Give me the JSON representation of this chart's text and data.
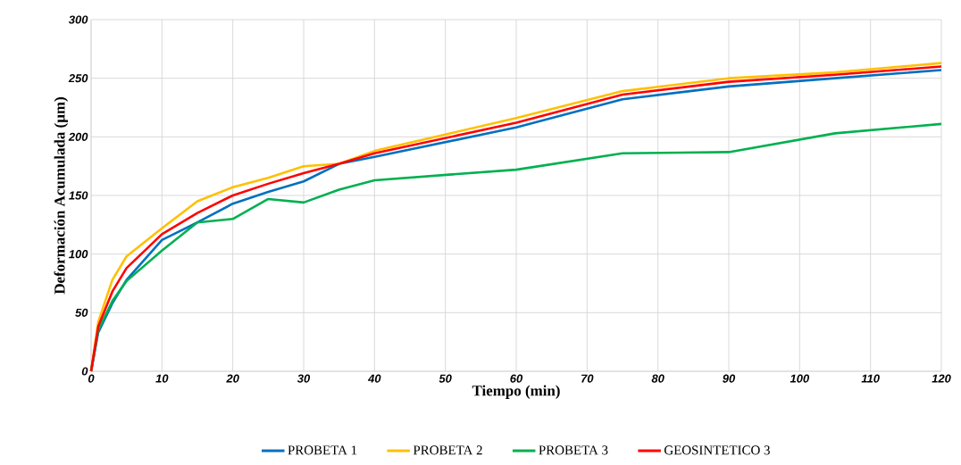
{
  "chart_data": {
    "type": "line",
    "xlabel": "Tiempo (min)",
    "ylabel": "Deformación Acumulada (µm)",
    "x": [
      0,
      1,
      3,
      5,
      10,
      15,
      20,
      25,
      30,
      35,
      40,
      60,
      75,
      90,
      105,
      120
    ],
    "series": [
      {
        "name": "PROBETA 1",
        "color": "#0070c0",
        "values": [
          0,
          33,
          58,
          78,
          112,
          127,
          143,
          153,
          162,
          177,
          183,
          208,
          232,
          243,
          250,
          257
        ]
      },
      {
        "name": "PROBETA 2",
        "color": "#ffc000",
        "values": [
          0,
          42,
          78,
          98,
          122,
          145,
          157,
          165,
          175,
          177,
          188,
          216,
          239,
          250,
          255,
          263
        ]
      },
      {
        "name": "PROBETA 3",
        "color": "#00b050",
        "values": [
          0,
          35,
          60,
          77,
          103,
          127,
          130,
          147,
          144,
          155,
          163,
          172,
          186,
          187,
          203,
          211
        ]
      },
      {
        "name": "GEOSINTETICO 3",
        "color": "#ff0000",
        "values": [
          0,
          38,
          68,
          88,
          117,
          135,
          150,
          160,
          169,
          177,
          186,
          212,
          236,
          247,
          253,
          260
        ]
      }
    ],
    "xlim": [
      0,
      120
    ],
    "ylim": [
      0,
      300
    ],
    "xticks": [
      0,
      10,
      20,
      30,
      40,
      50,
      60,
      70,
      80,
      90,
      100,
      110,
      120
    ],
    "yticks": [
      0,
      50,
      100,
      150,
      200,
      250,
      300
    ],
    "grid": true,
    "legend": "bottom",
    "marker": "none",
    "line_style": "solid"
  }
}
